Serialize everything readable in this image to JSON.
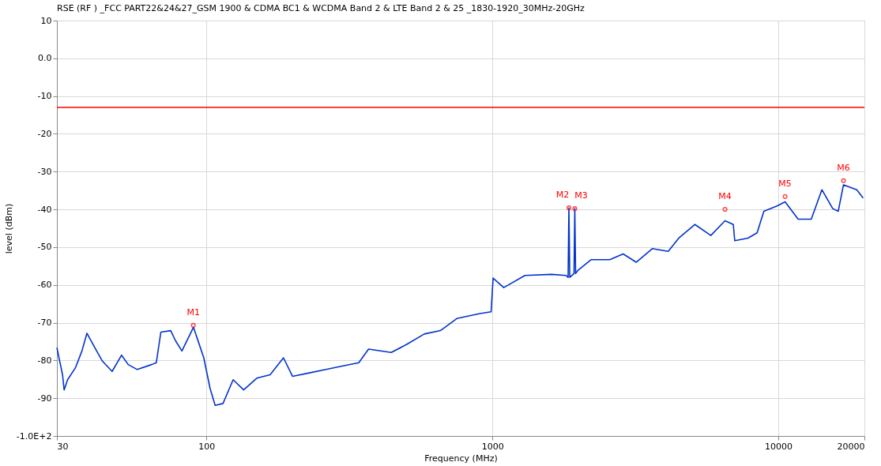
{
  "chart_data": {
    "type": "line",
    "title": "RSE (RF ) _FCC PART22&24&27_GSM 1900 & CDMA BC1 & WCDMA Band 2 & LTE Band 2 & 25 _1830-1920_30MHz-20GHz",
    "xlabel": "Frequency (MHz)",
    "ylabel": "level (dBm)",
    "log": "x",
    "grid": true,
    "legend": false,
    "xlim": [
      30,
      20000
    ],
    "xticks": [
      30,
      100,
      1000,
      10000,
      20000
    ],
    "ylim": [
      -100,
      10
    ],
    "yticks": [
      {
        "value": -100,
        "label": "-1.0E+2"
      },
      -90,
      -80,
      -70,
      -60,
      -50,
      -40,
      -30,
      -20,
      -10,
      {
        "value": 0,
        "label": "0.0"
      },
      10
    ],
    "series": [
      {
        "color": "#0033cc",
        "marker": "none",
        "x": [
          30,
          31.4,
          31.8,
          32.7,
          34.8,
          36.7,
          38.2,
          41.0,
          43.3,
          46.8,
          50.5,
          53.3,
          57.3,
          64.3,
          66.8,
          69.3,
          75.0,
          78.0,
          82.1,
          90.1,
          97.9,
          103,
          107.3,
          114.3,
          124,
          135,
          150,
          167,
          186,
          200,
          229,
          262,
          298,
          341,
          369,
          443,
          503,
          578,
          658,
          751,
          904,
          990,
          1000,
          1006,
          1096,
          1300,
          1610,
          1810,
          1840,
          1852,
          1865,
          1930,
          1942,
          1955,
          1994,
          2217,
          2575,
          2867,
          3184,
          3624,
          4120,
          4487,
          5110,
          5807,
          6510,
          6960,
          7040,
          7830,
          8430,
          8900,
          9900,
          10560,
          11730,
          13040,
          14200,
          15500,
          16200,
          16900,
          18800,
          19800
        ],
        "values": [
          -76.6,
          -83.8,
          -87.8,
          -85.1,
          -82,
          -77.5,
          -72.8,
          -77,
          -80.2,
          -82.9,
          -78.6,
          -81.1,
          -82.4,
          -81.1,
          -80.6,
          -72.5,
          -72.1,
          -74.8,
          -77.5,
          -71.2,
          -79.3,
          -87.4,
          -91.9,
          -91.4,
          -85.1,
          -87.8,
          -84.7,
          -83.8,
          -79.3,
          -84.2,
          -83.3,
          -82.4,
          -81.5,
          -80.6,
          -77,
          -77.9,
          -75.7,
          -73,
          -72.1,
          -68.9,
          -67.6,
          -67.1,
          -61.5,
          -58.2,
          -60.7,
          -57.5,
          -57.2,
          -57.5,
          -58,
          -39.6,
          -58,
          -57,
          -39.8,
          -57,
          -56.1,
          -53.3,
          -53.3,
          -51.8,
          -54,
          -50.4,
          -51.1,
          -47.6,
          -44,
          -46.9,
          -43,
          -44,
          -48.3,
          -47.6,
          -46.2,
          -40.5,
          -39.1,
          -38,
          -42.6,
          -42.6,
          -34.8,
          -39.8,
          -40.5,
          -33.5,
          -34.8,
          -37
        ]
      },
      {
        "type": "scatter",
        "color": "#ff0000",
        "marker": "circle",
        "x": [
          90,
          1852,
          1942,
          6510,
          10560,
          16900
        ],
        "values": [
          -70.7,
          -39.6,
          -39.8,
          -40.0,
          -36.6,
          -32.4
        ]
      }
    ],
    "ref_lines": [
      {
        "axis": "y",
        "value": -13,
        "color": "#ff0000",
        "line_style": "solid"
      }
    ],
    "annotations": [
      {
        "text": "M1",
        "x": 90,
        "y": -70.7
      },
      {
        "text": "M2",
        "x": 1852,
        "y": -39.6
      },
      {
        "text": "M3",
        "x": 1942,
        "y": -39.8
      },
      {
        "text": "M4",
        "x": 6510,
        "y": -40.0
      },
      {
        "text": "M5",
        "x": 10560,
        "y": -36.6
      },
      {
        "text": "M6",
        "x": 16900,
        "y": -32.4
      }
    ]
  }
}
